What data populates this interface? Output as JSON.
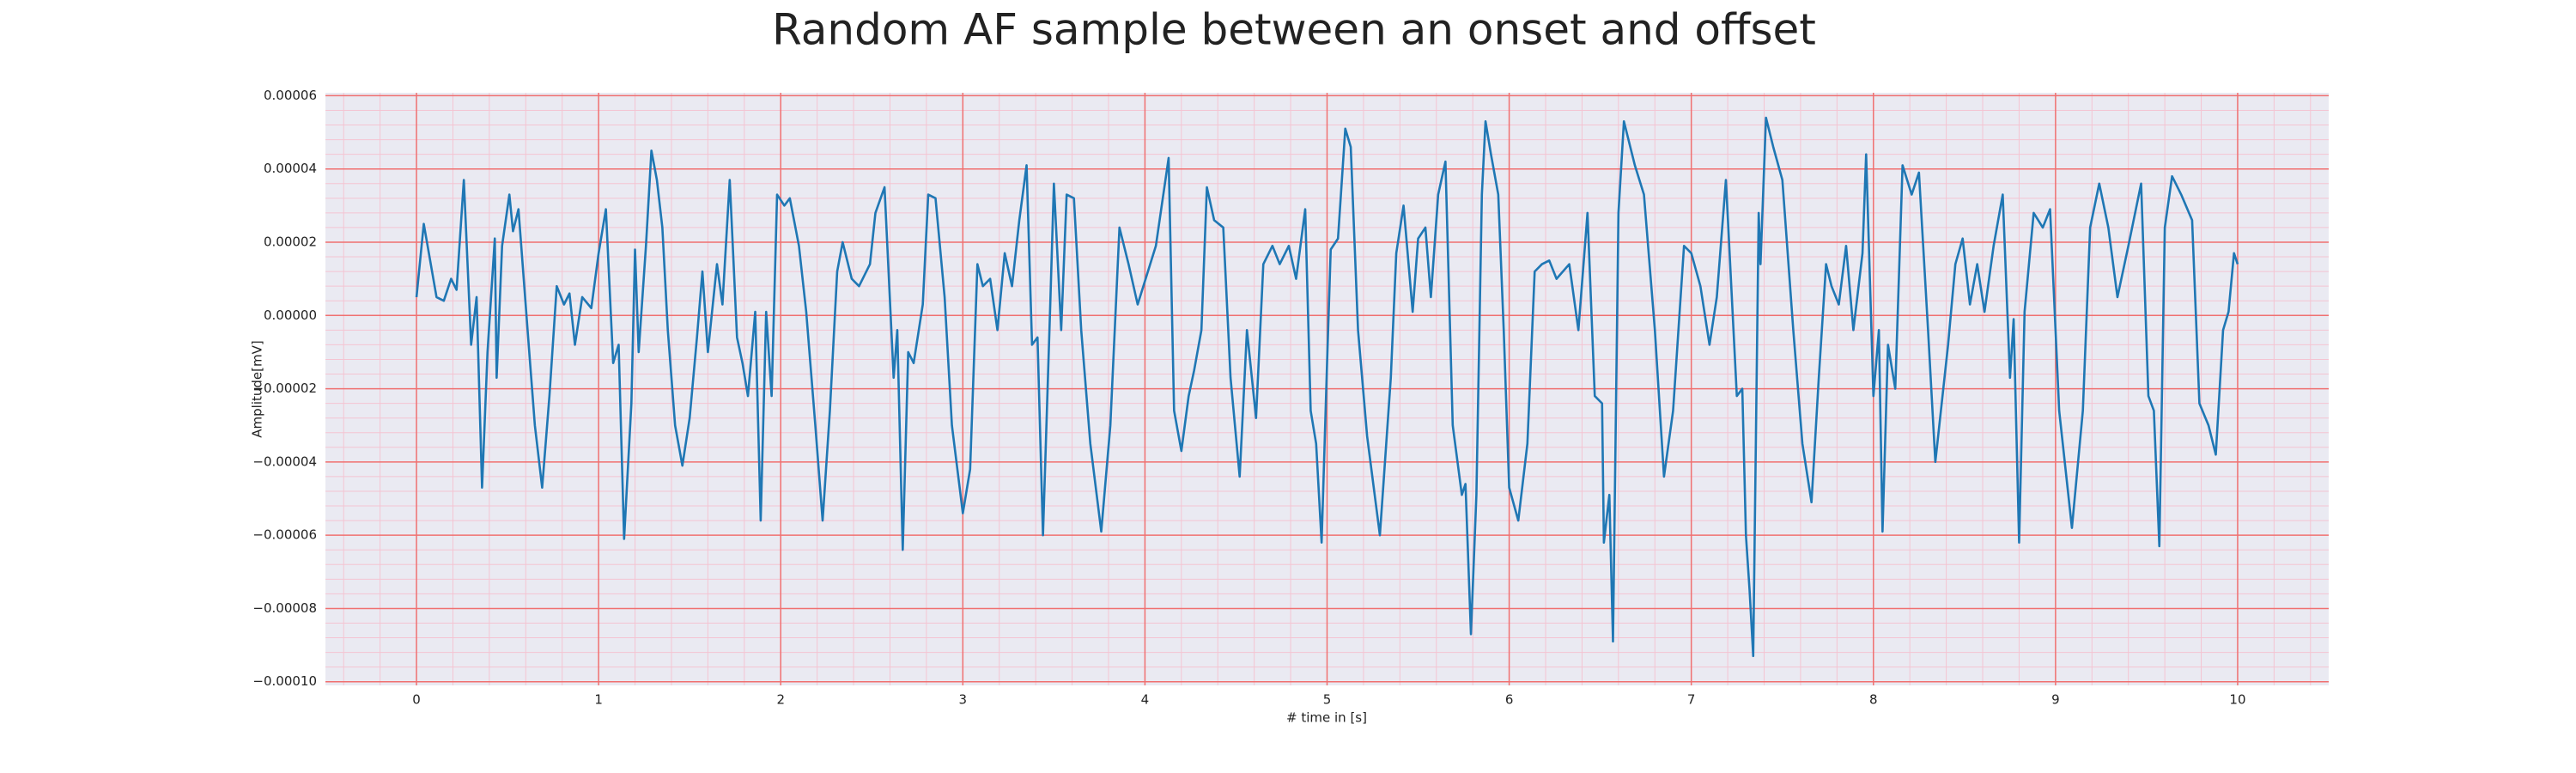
{
  "chart_data": {
    "type": "line",
    "title": "Random AF sample between an onset and offset",
    "xlabel": "# time in [s]",
    "ylabel": "Amplitude[mV]",
    "color": "#1f77b4",
    "background": "#eaeaf2",
    "grid": true,
    "grid_color": "#f07070",
    "minor_grid": true,
    "minor_grid_color": "#f4c4d2",
    "minor_per_major": 5,
    "xlim": [
      -0.5,
      10.5
    ],
    "xticks": [
      0,
      1,
      2,
      3,
      4,
      5,
      6,
      7,
      8,
      9,
      10
    ],
    "ylim": [
      -0.000101,
      6.08e-05
    ],
    "yticks": [
      {
        "value": 6e-05,
        "label": "0.00006"
      },
      {
        "value": 4e-05,
        "label": "0.00004"
      },
      {
        "value": 2e-05,
        "label": "0.00002"
      },
      {
        "value": 0,
        "label": "0.00000"
      },
      {
        "value": -2e-05,
        "label": "−0.00002"
      },
      {
        "value": -4e-05,
        "label": "−0.00004"
      },
      {
        "value": -6e-05,
        "label": "−0.00006"
      },
      {
        "value": -8e-05,
        "label": "−0.00008"
      },
      {
        "value": -0.0001,
        "label": "−0.00010"
      }
    ],
    "x": [
      0,
      0.04,
      0.11,
      0.15,
      0.19,
      0.22,
      0.26,
      0.3,
      0.33,
      0.36,
      0.39,
      0.43,
      0.44,
      0.47,
      0.51,
      0.53,
      0.56,
      0.61,
      0.65,
      0.69,
      0.73,
      0.77,
      0.81,
      0.84,
      0.87,
      0.91,
      0.96,
      1.0,
      1.04,
      1.08,
      1.11,
      1.14,
      1.18,
      1.2,
      1.22,
      1.26,
      1.29,
      1.32,
      1.35,
      1.38,
      1.42,
      1.46,
      1.5,
      1.54,
      1.57,
      1.6,
      1.65,
      1.68,
      1.72,
      1.76,
      1.79,
      1.82,
      1.86,
      1.89,
      1.92,
      1.95,
      1.98,
      2.02,
      2.05,
      2.1,
      2.14,
      2.19,
      2.23,
      2.27,
      2.31,
      2.34,
      2.39,
      2.43,
      2.49,
      2.52,
      2.57,
      2.62,
      2.64,
      2.67,
      2.7,
      2.73,
      2.78,
      2.81,
      2.85,
      2.9,
      2.94,
      3.0,
      3.04,
      3.08,
      3.11,
      3.15,
      3.19,
      3.23,
      3.27,
      3.31,
      3.35,
      3.38,
      3.41,
      3.44,
      3.48,
      3.5,
      3.54,
      3.57,
      3.61,
      3.65,
      3.7,
      3.76,
      3.81,
      3.86,
      3.91,
      3.96,
      4.01,
      4.06,
      4.13,
      4.16,
      4.2,
      4.24,
      4.27,
      4.31,
      4.34,
      4.38,
      4.43,
      4.47,
      4.52,
      4.56,
      4.61,
      4.65,
      4.7,
      4.74,
      4.79,
      4.83,
      4.88,
      4.91,
      4.94,
      4.97,
      5.0,
      5.02,
      5.06,
      5.1,
      5.13,
      5.17,
      5.22,
      5.29,
      5.35,
      5.38,
      5.42,
      5.47,
      5.5,
      5.54,
      5.57,
      5.61,
      5.65,
      5.69,
      5.74,
      5.76,
      5.79,
      5.82,
      5.85,
      5.87,
      5.9,
      5.94,
      5.97,
      6.0,
      6.05,
      6.1,
      6.14,
      6.18,
      6.22,
      6.26,
      6.33,
      6.38,
      6.43,
      6.47,
      6.51,
      6.52,
      6.55,
      6.57,
      6.6,
      6.63,
      6.69,
      6.74,
      6.8,
      6.85,
      6.9,
      6.96,
      7.0,
      7.05,
      7.1,
      7.14,
      7.19,
      7.25,
      7.28,
      7.3,
      7.32,
      7.34,
      7.37,
      7.38,
      7.41,
      7.45,
      7.5,
      7.56,
      7.61,
      7.66,
      7.7,
      7.74,
      7.77,
      7.81,
      7.85,
      7.89,
      7.94,
      7.96,
      8.0,
      8.03,
      8.05,
      8.08,
      8.12,
      8.16,
      8.21,
      8.25,
      8.3,
      8.34,
      8.41,
      8.45,
      8.49,
      8.53,
      8.57,
      8.61,
      8.66,
      8.71,
      8.75,
      8.77,
      8.8,
      8.83,
      8.88,
      8.93,
      8.97,
      9.02,
      9.09,
      9.15,
      9.19,
      9.24,
      9.29,
      9.34,
      9.4,
      9.47,
      9.51,
      9.54,
      9.57,
      9.6,
      9.64,
      9.69,
      9.75,
      9.79,
      9.84,
      9.88,
      9.92,
      9.95,
      9.98,
      10.0
    ],
    "values": [
      5e-06,
      2.5e-05,
      5e-06,
      4e-06,
      1e-05,
      7e-06,
      3.7e-05,
      -8e-06,
      5e-06,
      -4.7e-05,
      -1e-05,
      2.1e-05,
      -1.7e-05,
      1.9e-05,
      3.3e-05,
      2.3e-05,
      2.9e-05,
      -4e-06,
      -3e-05,
      -4.7e-05,
      -2.2e-05,
      8e-06,
      3e-06,
      6e-06,
      -8e-06,
      5e-06,
      2e-06,
      1.7e-05,
      2.9e-05,
      -1.3e-05,
      -8e-06,
      -6.1e-05,
      -2.4e-05,
      1.8e-05,
      -1e-05,
      1.9e-05,
      4.5e-05,
      3.7e-05,
      2.4e-05,
      -4e-06,
      -3e-05,
      -4.1e-05,
      -2.8e-05,
      -6e-06,
      1.2e-05,
      -1e-05,
      1.4e-05,
      3e-06,
      3.7e-05,
      -6e-06,
      -1.3e-05,
      -2.2e-05,
      1e-06,
      -5.6e-05,
      1e-06,
      -2.2e-05,
      3.3e-05,
      3e-05,
      3.2e-05,
      1.9e-05,
      1e-06,
      -3e-05,
      -5.6e-05,
      -2.6e-05,
      1.2e-05,
      2e-05,
      1e-05,
      8e-06,
      1.4e-05,
      2.8e-05,
      3.5e-05,
      -1.7e-05,
      -4e-06,
      -6.4e-05,
      -1e-05,
      -1.3e-05,
      3e-06,
      3.3e-05,
      3.2e-05,
      5e-06,
      -3e-05,
      -5.4e-05,
      -4.2e-05,
      1.4e-05,
      8e-06,
      1e-05,
      -4e-06,
      1.7e-05,
      8e-06,
      2.6e-05,
      4.1e-05,
      -8e-06,
      -6e-06,
      -6e-05,
      3e-06,
      3.6e-05,
      -4e-06,
      3.3e-05,
      3.2e-05,
      -4e-06,
      -3.5e-05,
      -5.9e-05,
      -3e-05,
      2.4e-05,
      1.4e-05,
      3e-06,
      1.1e-05,
      1.9e-05,
      4.3e-05,
      -2.6e-05,
      -3.7e-05,
      -2.2e-05,
      -1.5e-05,
      -4e-06,
      3.5e-05,
      2.6e-05,
      2.4e-05,
      -1.7e-05,
      -4.4e-05,
      -4e-06,
      -2.8e-05,
      1.4e-05,
      1.9e-05,
      1.4e-05,
      1.9e-05,
      1e-05,
      2.9e-05,
      -2.6e-05,
      -3.5e-05,
      -6.2e-05,
      -1.3e-05,
      1.8e-05,
      2.1e-05,
      5.1e-05,
      4.6e-05,
      -4e-06,
      -3.3e-05,
      -6e-05,
      -1.7e-05,
      1.7e-05,
      3e-05,
      1e-06,
      2.1e-05,
      2.4e-05,
      5e-06,
      3.3e-05,
      4.2e-05,
      -3e-05,
      -4.9e-05,
      -4.6e-05,
      -8.7e-05,
      -4.9e-05,
      3.3e-05,
      5.3e-05,
      4.4e-05,
      3.3e-05,
      -4e-06,
      -4.7e-05,
      -5.6e-05,
      -3.5e-05,
      1.2e-05,
      1.4e-05,
      1.5e-05,
      1e-05,
      1.4e-05,
      -4e-06,
      2.8e-05,
      -2.2e-05,
      -2.4e-05,
      -6.2e-05,
      -4.9e-05,
      -8.9e-05,
      2.8e-05,
      5.3e-05,
      4.1e-05,
      3.3e-05,
      -4e-06,
      -4.4e-05,
      -2.6e-05,
      1.9e-05,
      1.7e-05,
      8e-06,
      -8e-06,
      5e-06,
      3.7e-05,
      -2.2e-05,
      -2e-05,
      -6e-05,
      -7.5e-05,
      -9.3e-05,
      2.8e-05,
      1.4e-05,
      5.4e-05,
      4.6e-05,
      3.7e-05,
      -4e-06,
      -3.5e-05,
      -5.1e-05,
      -1.7e-05,
      1.4e-05,
      8e-06,
      3e-06,
      1.9e-05,
      -4e-06,
      1.7e-05,
      4.4e-05,
      -2.2e-05,
      -4e-06,
      -5.9e-05,
      -8e-06,
      -2e-05,
      4.1e-05,
      3.3e-05,
      3.9e-05,
      -4e-06,
      -4e-05,
      -8e-06,
      1.4e-05,
      2.1e-05,
      3e-06,
      1.4e-05,
      1e-06,
      1.9e-05,
      3.3e-05,
      -1.7e-05,
      -1e-06,
      -6.2e-05,
      1e-06,
      2.8e-05,
      2.4e-05,
      2.9e-05,
      -2.6e-05,
      -5.8e-05,
      -2.6e-05,
      2.4e-05,
      3.6e-05,
      2.4e-05,
      5e-06,
      1.9e-05,
      3.6e-05,
      -2.2e-05,
      -2.6e-05,
      -6.3e-05,
      2.4e-05,
      3.8e-05,
      3.3e-05,
      2.6e-05,
      -2.4e-05,
      -3e-05,
      -3.8e-05,
      -4e-06,
      1e-06,
      1.7e-05,
      1.4e-05
    ]
  }
}
